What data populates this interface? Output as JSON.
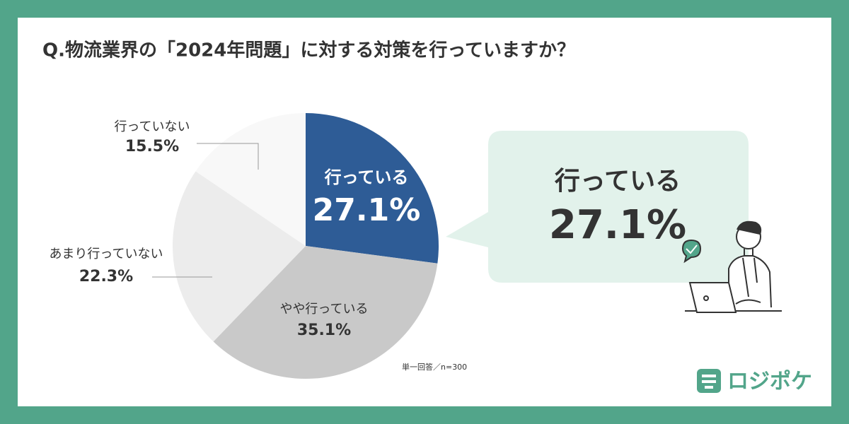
{
  "chart_data": {
    "type": "pie",
    "title": "Q.物流業界の「2024年問題」に対する対策を行っていますか？",
    "categories": [
      "行っている",
      "やや行っている",
      "あまり行っていない",
      "行っていない"
    ],
    "values": [
      27.1,
      35.1,
      22.3,
      15.5
    ],
    "value_labels": [
      "27.1%",
      "35.1%",
      "22.3%",
      "15.5%"
    ],
    "colors": [
      "#2e5c96",
      "#c9c9c9",
      "#ececec",
      "#f8f8f8"
    ],
    "note": "単一回答／n=300",
    "brand": "ロジポケ"
  }
}
